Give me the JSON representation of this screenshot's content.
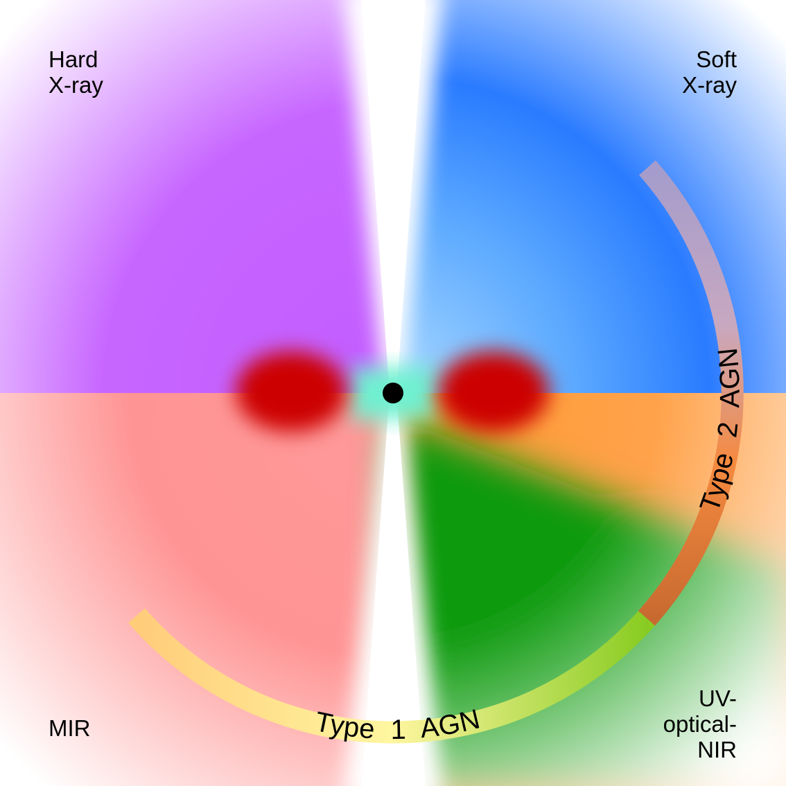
{
  "labels": {
    "top_left": [
      "Hard",
      "X-ray"
    ],
    "top_right": [
      "Soft",
      "X-ray"
    ],
    "bottom_left": [
      "MIR"
    ],
    "bottom_right": [
      "UV-",
      "optical-",
      "NIR"
    ]
  },
  "arc": {
    "type1": "Type 1 AGN",
    "type2": "Type 2 AGN"
  }
}
